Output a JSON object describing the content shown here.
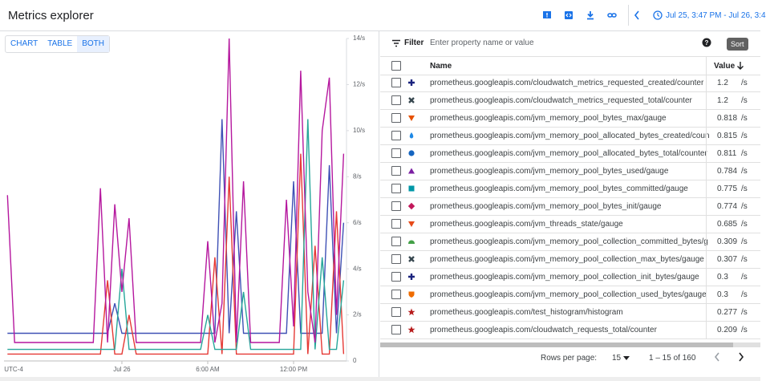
{
  "header": {
    "title": "Metrics explorer",
    "time_range": "Jul 25, 3:47 PM - Jul 26, 3:4"
  },
  "view_toggle": {
    "options": [
      "CHART",
      "TABLE",
      "BOTH"
    ],
    "selected": 2
  },
  "chart_data": {
    "type": "line",
    "timezone": "UTC-4",
    "x": [
      16,
      16.5,
      17,
      17.5,
      18,
      18.5,
      19,
      19.5,
      20,
      20.5,
      21,
      21.5,
      22,
      22.5,
      23,
      23.5,
      24,
      24.5,
      25,
      25.5,
      26,
      26.5,
      27,
      27.5,
      28,
      28.5,
      29,
      29.5,
      30,
      30.5,
      31,
      31.5,
      32,
      32.5,
      33,
      33.5,
      34,
      34.5,
      35,
      35.5,
      36,
      36.5,
      37,
      37.5,
      38,
      38.5,
      39,
      39.5
    ],
    "xlim": [
      15.76,
      39.7
    ],
    "xticks": [
      {
        "value": 24,
        "label": "Jul 26"
      },
      {
        "value": 30,
        "label": "6:00 AM"
      },
      {
        "value": 36,
        "label": "12:00 PM"
      }
    ],
    "ylim": [
      0,
      14
    ],
    "yticks": [
      0,
      {
        "value": 2,
        "label": "2/s"
      },
      {
        "value": 4,
        "label": "4/s"
      },
      {
        "value": 6,
        "label": "6/s"
      },
      {
        "value": 8,
        "label": "8/s"
      },
      {
        "value": 10,
        "label": "10/s"
      },
      {
        "value": 12,
        "label": "12/s"
      },
      {
        "value": 14,
        "label": "14/s"
      }
    ],
    "series": [
      {
        "color": "#3f51b5",
        "values": [
          1.2,
          1.2,
          1.2,
          1.2,
          1.2,
          1.2,
          1.2,
          1.2,
          1.2,
          1.2,
          1.2,
          1.2,
          1.2,
          1.2,
          1.2,
          2.5,
          1.2,
          1.2,
          1.2,
          1.2,
          1.2,
          1.2,
          1.2,
          1.2,
          1.2,
          1.2,
          1.2,
          1.2,
          1.2,
          1.2,
          10.5,
          1.2,
          6.5,
          1.2,
          1.2,
          1.2,
          1.2,
          1.2,
          1.2,
          1.2,
          7.8,
          1.2,
          1.2,
          1.2,
          1.2,
          8.5,
          1.2,
          6
        ]
      },
      {
        "color": "#e53935",
        "values": [
          0.3,
          0.3,
          0.3,
          0.3,
          0.3,
          0.3,
          0.3,
          0.3,
          0.3,
          0.3,
          0.3,
          0.3,
          0.3,
          0.3,
          3.5,
          0.3,
          0.3,
          2,
          0.3,
          0.3,
          0.3,
          0.3,
          0.3,
          0.3,
          0.3,
          0.3,
          0.3,
          0.3,
          0.3,
          4.5,
          0.3,
          8,
          0.3,
          0.3,
          0.3,
          0.3,
          0.3,
          0.3,
          0.3,
          0.3,
          0.3,
          9,
          0.3,
          5,
          0.3,
          0.3,
          6.5,
          0.3
        ]
      },
      {
        "color": "#26a69a",
        "values": [
          0.5,
          0.5,
          0.5,
          0.5,
          0.5,
          0.5,
          0.5,
          0.5,
          0.5,
          0.5,
          0.5,
          0.5,
          0.5,
          0.5,
          0.5,
          0.5,
          4,
          0.5,
          0.5,
          0.5,
          0.5,
          0.5,
          0.5,
          0.5,
          0.5,
          0.5,
          0.5,
          0.5,
          2,
          0.5,
          0.5,
          0.5,
          0.5,
          3,
          0.5,
          0.5,
          0.5,
          0.5,
          0.5,
          0.5,
          0.5,
          0.5,
          10.5,
          0.5,
          4.5,
          0.5,
          0.5,
          3.5
        ]
      },
      {
        "color": "#b5179e",
        "values": [
          7.2,
          0.8,
          0.8,
          0.8,
          0.8,
          0.8,
          0.8,
          0.8,
          0.8,
          0.8,
          0.8,
          0.8,
          0.8,
          7.5,
          0.8,
          6.8,
          3,
          6.2,
          0.8,
          0.8,
          0.8,
          0.8,
          0.8,
          0.8,
          0.8,
          0.8,
          0.8,
          0.8,
          5.2,
          0.8,
          2.5,
          14,
          0.8,
          7.8,
          0.8,
          0.8,
          0.8,
          0.8,
          0.8,
          7,
          1.5,
          12.6,
          3,
          0.8,
          10,
          12.3,
          2,
          9
        ]
      }
    ]
  },
  "table": {
    "filter_label": "Filter",
    "filter_placeholder": "Enter property name or value",
    "sort_tooltip": "Sort",
    "columns": [
      "Name",
      "Value"
    ],
    "rows": [
      {
        "marker": "plus",
        "color": "#1a237e",
        "name": "prometheus.googleapis.com/cloudwatch_metrics_requested_created/counter",
        "value": 1.2,
        "unit": "/s"
      },
      {
        "marker": "cross",
        "color": "#37474f",
        "name": "prometheus.googleapis.com/cloudwatch_metrics_requested_total/counter",
        "value": 1.2,
        "unit": "/s"
      },
      {
        "marker": "tri-down",
        "color": "#e65100",
        "name": "prometheus.googleapis.com/jvm_memory_pool_bytes_max/gauge",
        "value": 0.818,
        "unit": "/s"
      },
      {
        "marker": "drop",
        "color": "#1e88e5",
        "name": "prometheus.googleapis.com/jvm_memory_pool_allocated_bytes_created/coun",
        "value": 0.815,
        "unit": "/s"
      },
      {
        "marker": "circle",
        "color": "#1565c0",
        "name": "prometheus.googleapis.com/jvm_memory_pool_allocated_bytes_total/counter",
        "value": 0.811,
        "unit": "/s"
      },
      {
        "marker": "tri-up",
        "color": "#7b1fa2",
        "name": "prometheus.googleapis.com/jvm_memory_pool_bytes_used/gauge",
        "value": 0.784,
        "unit": "/s"
      },
      {
        "marker": "square",
        "color": "#0097a7",
        "name": "prometheus.googleapis.com/jvm_memory_pool_bytes_committed/gauge",
        "value": 0.775,
        "unit": "/s"
      },
      {
        "marker": "diamond",
        "color": "#c2185b",
        "name": "prometheus.googleapis.com/jvm_memory_pool_bytes_init/gauge",
        "value": 0.774,
        "unit": "/s"
      },
      {
        "marker": "tri-down",
        "color": "#e64a19",
        "name": "prometheus.googleapis.com/jvm_threads_state/gauge",
        "value": 0.685,
        "unit": "/s"
      },
      {
        "marker": "dome",
        "color": "#43a047",
        "name": "prometheus.googleapis.com/jvm_memory_pool_collection_committed_bytes/g",
        "value": 0.309,
        "unit": "/s"
      },
      {
        "marker": "cross",
        "color": "#37474f",
        "name": "prometheus.googleapis.com/jvm_memory_pool_collection_max_bytes/gauge",
        "value": 0.307,
        "unit": "/s"
      },
      {
        "marker": "plus",
        "color": "#1a237e",
        "name": "prometheus.googleapis.com/jvm_memory_pool_collection_init_bytes/gauge",
        "value": 0.3,
        "unit": "/s"
      },
      {
        "marker": "shield",
        "color": "#ef6c00",
        "name": "prometheus.googleapis.com/jvm_memory_pool_collection_used_bytes/gauge",
        "value": 0.3,
        "unit": "/s"
      },
      {
        "marker": "star",
        "color": "#b71c1c",
        "name": "prometheus.googleapis.com/test_histogram/histogram",
        "value": 0.277,
        "unit": "/s"
      },
      {
        "marker": "star",
        "color": "#b71c1c",
        "name": "prometheus.googleapis.com/cloudwatch_requests_total/counter",
        "value": 0.209,
        "unit": "/s"
      }
    ]
  },
  "footer": {
    "rows_per_page_label": "Rows per page:",
    "rows_per_page": 15,
    "range": "1 – 15 of 160"
  }
}
